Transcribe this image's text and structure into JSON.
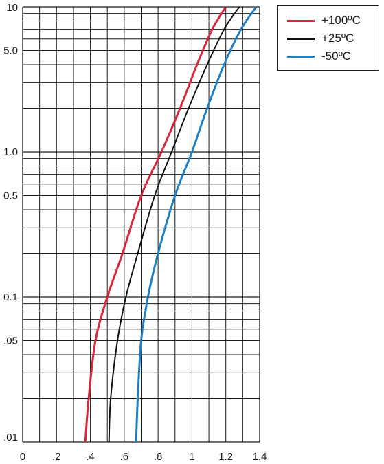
{
  "chart_data": {
    "type": "line",
    "title": "",
    "xlabel": "",
    "ylabel": "",
    "xlim": [
      0,
      1.4
    ],
    "ylim": [
      0.01,
      10
    ],
    "yscale": "log",
    "grid": true,
    "legend_position": "top-right (outside plot)",
    "x_ticks": [
      "0",
      ".2",
      ".4",
      ".6",
      ".8",
      "1",
      "1.2",
      "1.4"
    ],
    "x_tick_values": [
      0,
      0.2,
      0.4,
      0.6,
      0.8,
      1.0,
      1.2,
      1.4
    ],
    "y_ticks": [
      "10",
      "5.0",
      "1.0",
      "0.5",
      "0.1",
      ".05",
      ".01"
    ],
    "y_tick_values": [
      10,
      5,
      1,
      0.5,
      0.1,
      0.05,
      0.01
    ],
    "series": [
      {
        "name": "+100ºC",
        "color": "#d7263d",
        "x": [
          0.37,
          0.39,
          0.43,
          0.5,
          0.59,
          0.7,
          0.82,
          0.93,
          1.03,
          1.12,
          1.2
        ],
        "y": [
          0.01,
          0.02,
          0.05,
          0.1,
          0.2,
          0.5,
          1.0,
          2.0,
          4.0,
          7.0,
          10
        ]
      },
      {
        "name": "+25ºC",
        "color": "#111111",
        "x": [
          0.51,
          0.52,
          0.56,
          0.61,
          0.68,
          0.78,
          0.88,
          0.98,
          1.09,
          1.19,
          1.28
        ],
        "y": [
          0.01,
          0.02,
          0.05,
          0.1,
          0.2,
          0.5,
          1.0,
          2.0,
          4.0,
          7.0,
          10
        ]
      },
      {
        "name": "-50ºC",
        "color": "#1f7fc4",
        "x": [
          0.67,
          0.68,
          0.7,
          0.74,
          0.8,
          0.9,
          1.0,
          1.09,
          1.19,
          1.29,
          1.38
        ],
        "y": [
          0.01,
          0.02,
          0.05,
          0.1,
          0.2,
          0.5,
          1.0,
          2.0,
          4.0,
          7.0,
          10
        ]
      }
    ]
  }
}
